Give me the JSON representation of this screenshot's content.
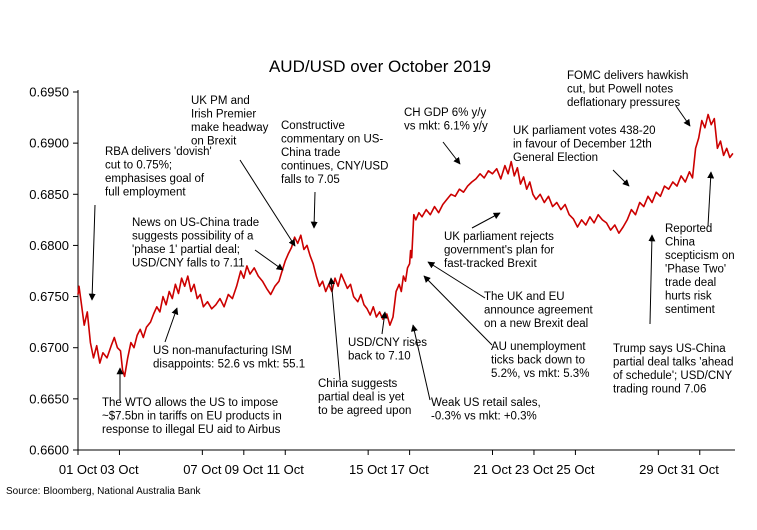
{
  "chart_data": {
    "type": "line",
    "title": "AUD/USD over October 2019",
    "xlabel": "",
    "ylabel": "",
    "ylim": [
      0.66,
      0.695
    ],
    "yticks": [
      "0.6600",
      "0.6650",
      "0.6700",
      "0.6750",
      "0.6800",
      "0.6850",
      "0.6900",
      "0.6950"
    ],
    "xlim": [
      0,
      31.7
    ],
    "xticks": [
      {
        "x": 0,
        "label": "01 Oct"
      },
      {
        "x": 2,
        "label": "03 Oct"
      },
      {
        "x": 6,
        "label": "07 Oct"
      },
      {
        "x": 8,
        "label": "09 Oct"
      },
      {
        "x": 10,
        "label": "11 Oct"
      },
      {
        "x": 14,
        "label": "15 Oct"
      },
      {
        "x": 16,
        "label": "17 Oct"
      },
      {
        "x": 20,
        "label": "21 Oct"
      },
      {
        "x": 22,
        "label": "23 Oct"
      },
      {
        "x": 24,
        "label": "25 Oct"
      },
      {
        "x": 28,
        "label": "29 Oct"
      },
      {
        "x": 30,
        "label": "31 Oct"
      }
    ],
    "grid": false,
    "line_color": "#cc0000",
    "series": [
      {
        "values": [
          [
            0.0,
            0.6752
          ],
          [
            0.05,
            0.676
          ],
          [
            0.15,
            0.6745
          ],
          [
            0.3,
            0.6722
          ],
          [
            0.45,
            0.6735
          ],
          [
            0.6,
            0.6705
          ],
          [
            0.75,
            0.669
          ],
          [
            0.9,
            0.6702
          ],
          [
            1.05,
            0.6685
          ],
          [
            1.2,
            0.6695
          ],
          [
            1.4,
            0.669
          ],
          [
            1.6,
            0.6702
          ],
          [
            1.75,
            0.671
          ],
          [
            1.9,
            0.67
          ],
          [
            2.05,
            0.6697
          ],
          [
            2.15,
            0.6678
          ],
          [
            2.25,
            0.6672
          ],
          [
            2.4,
            0.669
          ],
          [
            2.55,
            0.6705
          ],
          [
            2.7,
            0.67
          ],
          [
            2.85,
            0.6712
          ],
          [
            3.0,
            0.6718
          ],
          [
            3.15,
            0.671
          ],
          [
            3.3,
            0.672
          ],
          [
            3.5,
            0.6725
          ],
          [
            3.65,
            0.6733
          ],
          [
            3.8,
            0.674
          ],
          [
            3.95,
            0.6735
          ],
          [
            4.1,
            0.675
          ],
          [
            4.25,
            0.6742
          ],
          [
            4.4,
            0.6755
          ],
          [
            4.55,
            0.6748
          ],
          [
            4.7,
            0.6762
          ],
          [
            4.85,
            0.6753
          ],
          [
            5.0,
            0.6768
          ],
          [
            5.15,
            0.676
          ],
          [
            5.3,
            0.677
          ],
          [
            5.45,
            0.6755
          ],
          [
            5.6,
            0.6762
          ],
          [
            5.75,
            0.6748
          ],
          [
            5.9,
            0.6752
          ],
          [
            6.05,
            0.674
          ],
          [
            6.25,
            0.6745
          ],
          [
            6.45,
            0.6738
          ],
          [
            6.65,
            0.6742
          ],
          [
            6.85,
            0.6748
          ],
          [
            7.05,
            0.674
          ],
          [
            7.25,
            0.6752
          ],
          [
            7.45,
            0.6748
          ],
          [
            7.65,
            0.676
          ],
          [
            7.85,
            0.6775
          ],
          [
            8.0,
            0.6768
          ],
          [
            8.15,
            0.678
          ],
          [
            8.3,
            0.6772
          ],
          [
            8.5,
            0.6778
          ],
          [
            8.7,
            0.677
          ],
          [
            8.9,
            0.6765
          ],
          [
            9.1,
            0.6758
          ],
          [
            9.3,
            0.6752
          ],
          [
            9.5,
            0.676
          ],
          [
            9.7,
            0.6765
          ],
          [
            9.85,
            0.6775
          ],
          [
            10.0,
            0.6785
          ],
          [
            10.15,
            0.6792
          ],
          [
            10.3,
            0.6798
          ],
          [
            10.45,
            0.6808
          ],
          [
            10.6,
            0.6802
          ],
          [
            10.75,
            0.681
          ],
          [
            10.9,
            0.6796
          ],
          [
            11.05,
            0.68
          ],
          [
            11.2,
            0.679
          ],
          [
            11.35,
            0.6782
          ],
          [
            11.5,
            0.677
          ],
          [
            11.65,
            0.676
          ],
          [
            11.8,
            0.6765
          ],
          [
            11.95,
            0.6755
          ],
          [
            12.1,
            0.6762
          ],
          [
            12.25,
            0.6755
          ],
          [
            12.4,
            0.6768
          ],
          [
            12.55,
            0.676
          ],
          [
            12.7,
            0.6772
          ],
          [
            12.85,
            0.6765
          ],
          [
            13.0,
            0.6758
          ],
          [
            13.15,
            0.6762
          ],
          [
            13.3,
            0.675
          ],
          [
            13.5,
            0.6745
          ],
          [
            13.65,
            0.6752
          ],
          [
            13.8,
            0.6742
          ],
          [
            13.95,
            0.6738
          ],
          [
            14.1,
            0.6732
          ],
          [
            14.25,
            0.674
          ],
          [
            14.4,
            0.673
          ],
          [
            14.55,
            0.6735
          ],
          [
            14.7,
            0.6728
          ],
          [
            14.9,
            0.6733
          ],
          [
            15.05,
            0.6722
          ],
          [
            15.2,
            0.673
          ],
          [
            15.35,
            0.6755
          ],
          [
            15.5,
            0.6762
          ],
          [
            15.6,
            0.6755
          ],
          [
            15.7,
            0.677
          ],
          [
            15.8,
            0.6765
          ],
          [
            15.9,
            0.6778
          ],
          [
            16.0,
            0.6782
          ],
          [
            16.05,
            0.6795
          ],
          [
            16.1,
            0.6788
          ],
          [
            16.2,
            0.683
          ],
          [
            16.3,
            0.6825
          ],
          [
            16.45,
            0.6832
          ],
          [
            16.6,
            0.6828
          ],
          [
            16.8,
            0.6835
          ],
          [
            17.0,
            0.683
          ],
          [
            17.2,
            0.6838
          ],
          [
            17.4,
            0.6832
          ],
          [
            17.6,
            0.684
          ],
          [
            17.8,
            0.6845
          ],
          [
            18.0,
            0.685
          ],
          [
            18.2,
            0.6848
          ],
          [
            18.4,
            0.6855
          ],
          [
            18.6,
            0.6852
          ],
          [
            18.8,
            0.6858
          ],
          [
            19.0,
            0.6862
          ],
          [
            19.2,
            0.6865
          ],
          [
            19.4,
            0.687
          ],
          [
            19.6,
            0.6866
          ],
          [
            19.8,
            0.6873
          ],
          [
            20.0,
            0.687
          ],
          [
            20.2,
            0.6875
          ],
          [
            20.4,
            0.6865
          ],
          [
            20.6,
            0.6878
          ],
          [
            20.75,
            0.687
          ],
          [
            20.9,
            0.6882
          ],
          [
            21.05,
            0.6868
          ],
          [
            21.2,
            0.6876
          ],
          [
            21.35,
            0.686
          ],
          [
            21.5,
            0.6867
          ],
          [
            21.65,
            0.6855
          ],
          [
            21.8,
            0.6862
          ],
          [
            21.95,
            0.685
          ],
          [
            22.1,
            0.6845
          ],
          [
            22.3,
            0.685
          ],
          [
            22.5,
            0.6842
          ],
          [
            22.7,
            0.6848
          ],
          [
            22.9,
            0.6838
          ],
          [
            23.1,
            0.6842
          ],
          [
            23.3,
            0.6835
          ],
          [
            23.5,
            0.684
          ],
          [
            23.7,
            0.683
          ],
          [
            23.9,
            0.6826
          ],
          [
            24.1,
            0.6818
          ],
          [
            24.3,
            0.6825
          ],
          [
            24.5,
            0.682
          ],
          [
            24.7,
            0.6828
          ],
          [
            24.9,
            0.6822
          ],
          [
            25.1,
            0.683
          ],
          [
            25.3,
            0.6825
          ],
          [
            25.5,
            0.6822
          ],
          [
            25.7,
            0.6815
          ],
          [
            25.9,
            0.682
          ],
          [
            26.1,
            0.6812
          ],
          [
            26.3,
            0.6818
          ],
          [
            26.5,
            0.6825
          ],
          [
            26.7,
            0.6835
          ],
          [
            26.9,
            0.683
          ],
          [
            27.1,
            0.6842
          ],
          [
            27.3,
            0.6838
          ],
          [
            27.5,
            0.6848
          ],
          [
            27.7,
            0.6842
          ],
          [
            27.9,
            0.6852
          ],
          [
            28.1,
            0.6848
          ],
          [
            28.3,
            0.6858
          ],
          [
            28.5,
            0.6855
          ],
          [
            28.7,
            0.6862
          ],
          [
            28.9,
            0.6858
          ],
          [
            29.1,
            0.6868
          ],
          [
            29.3,
            0.6862
          ],
          [
            29.5,
            0.6872
          ],
          [
            29.65,
            0.6866
          ],
          [
            29.8,
            0.6895
          ],
          [
            29.95,
            0.6905
          ],
          [
            30.1,
            0.6922
          ],
          [
            30.25,
            0.6915
          ],
          [
            30.4,
            0.6928
          ],
          [
            30.55,
            0.6918
          ],
          [
            30.7,
            0.6924
          ],
          [
            30.85,
            0.6895
          ],
          [
            31.0,
            0.6902
          ],
          [
            31.15,
            0.6888
          ],
          [
            31.3,
            0.6895
          ],
          [
            31.45,
            0.6886
          ],
          [
            31.6,
            0.689
          ]
        ]
      }
    ],
    "annotations": [
      {
        "text": [
          "RBA delivers 'dovish'",
          "cut to 0.75%;",
          "emphasises goal of",
          "full employment"
        ]
      },
      {
        "text": [
          "The WTO allows the US to impose",
          "~$7.5bn in tariffs on EU products in",
          "response to illegal EU aid to Airbus"
        ]
      },
      {
        "text": [
          "US non-manufacturing ISM",
          "disappoints: 52.6 vs mkt: 55.1"
        ]
      },
      {
        "text": [
          "News on US-China trade",
          "suggests possibility of a",
          "'phase 1' partial deal;",
          "USD/CNY falls to 7.11"
        ]
      },
      {
        "text": [
          "UK PM and",
          "Irish Premier",
          "make headway",
          "on Brexit"
        ]
      },
      {
        "text": [
          "Constructive",
          "commentary on US-",
          "China trade",
          "continues, CNY/USD",
          "falls to 7.05"
        ]
      },
      {
        "text": [
          "China suggests",
          "partial deal is yet",
          "to be agreed upon"
        ]
      },
      {
        "text": [
          "USD/CNY rises",
          "back to 7.10"
        ]
      },
      {
        "text": [
          "Weak US retail sales,",
          "-0.3% vs mkt: +0.3%"
        ]
      },
      {
        "text": [
          "AU unemployment",
          "ticks back down to",
          "5.2%, vs mkt: 5.3%"
        ]
      },
      {
        "text": [
          "The UK and EU",
          "announce agreement",
          "on a new Brexit deal"
        ]
      },
      {
        "text": [
          "UK parliament rejects",
          "government's plan for",
          "fast-tracked Brexit"
        ]
      },
      {
        "text": [
          "CH GDP 6% y/y",
          "vs mkt: 6.1% y/y"
        ]
      },
      {
        "text": [
          "UK parliament votes 438-20",
          "in favour of December 12th",
          "General Election"
        ]
      },
      {
        "text": [
          "FOMC delivers hawkish",
          "cut, but Powell notes",
          "deflationary pressures"
        ]
      },
      {
        "text": [
          "Reported",
          "China",
          "scepticism on",
          "'Phase Two'",
          "trade deal",
          "hurts risk",
          "sentiment"
        ]
      },
      {
        "text": [
          "Trump says US-China",
          "partial deal talks 'ahead",
          "of schedule'; USD/CNY",
          "trading round 7.06"
        ]
      }
    ],
    "source": "Source: Bloomberg, National Australia Bank"
  }
}
